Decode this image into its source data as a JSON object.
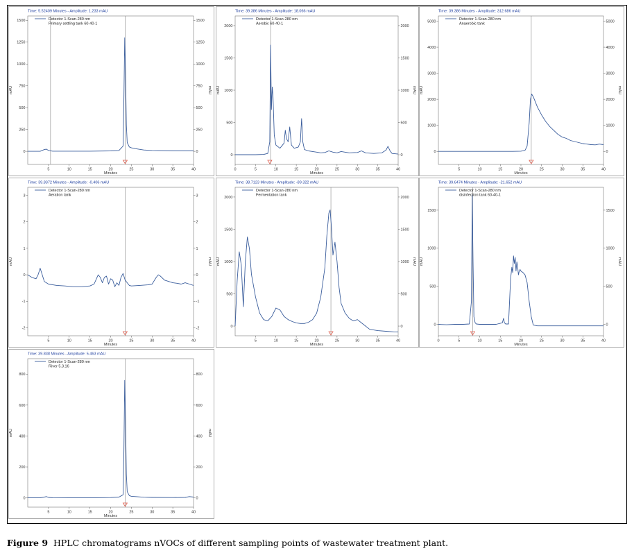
{
  "caption": {
    "label": "Figure 9",
    "text": "HPLC chromatograms nVOCs of different sampling points of wastewater treatment plant."
  },
  "style": {
    "trace_color": "#3a5d9c",
    "status_color": "#1f3f9f",
    "cursor_color": "#888888",
    "marker_color": "#e06050"
  },
  "chart_data": [
    {
      "type": "line",
      "status": "Time:  5.52409 Minutes  -  Amplitude:  1.233 mAU",
      "legend": [
        "Detector 1-Scan-280 nm",
        "Primary settling tank 60-40-1"
      ],
      "xlabel": "Minutes",
      "ylabel": "mAU",
      "xlim": [
        0,
        40
      ],
      "ylim": [
        -150,
        1550
      ],
      "xticks": [
        5,
        10,
        15,
        20,
        25,
        30,
        35,
        40
      ],
      "yticks": [
        0,
        250,
        500,
        750,
        1000,
        1250,
        1500
      ],
      "cursors": [
        5.5,
        23.5
      ],
      "marker_x": 23.5,
      "series": [
        {
          "x": [
            0,
            3,
            4,
            4.5,
            5,
            6,
            10,
            15,
            20,
            22,
            23,
            23.2,
            23.4,
            23.6,
            23.8,
            24,
            24.5,
            25,
            26,
            28,
            30,
            35,
            40
          ],
          "y": [
            0,
            0,
            20,
            25,
            10,
            2,
            2,
            2,
            5,
            10,
            60,
            600,
            1300,
            900,
            300,
            100,
            50,
            40,
            30,
            15,
            10,
            5,
            5
          ]
        }
      ]
    },
    {
      "type": "line",
      "status": "Time:  39.386 Minutes  -  Amplitude:  18.066 mAU",
      "legend": [
        "Detector 1-Scan-280 nm",
        "Aerobic 60-40-1"
      ],
      "xlabel": "Minutes",
      "ylabel": "mAU",
      "xlim": [
        0,
        40
      ],
      "ylim": [
        -150,
        2150
      ],
      "xticks": [
        0,
        5,
        10,
        15,
        20,
        25,
        30,
        35,
        40
      ],
      "yticks": [
        0,
        500,
        1000,
        1500,
        2000
      ],
      "cursors": [
        8.7
      ],
      "marker_x": 8.5,
      "series": [
        {
          "x": [
            0,
            5,
            7,
            8,
            8.5,
            8.7,
            8.9,
            9.1,
            9.3,
            9.6,
            10,
            11,
            12,
            12.3,
            12.6,
            13,
            13.4,
            13.8,
            14.5,
            15.5,
            16,
            16.3,
            16.6,
            17,
            18,
            19,
            20,
            21,
            22,
            23,
            24,
            25,
            26,
            28,
            30,
            31,
            32,
            34,
            36,
            37,
            37.5,
            38,
            38.5,
            40
          ],
          "y": [
            0,
            0,
            5,
            20,
            200,
            1700,
            700,
            1050,
            900,
            300,
            150,
            100,
            180,
            380,
            250,
            200,
            430,
            150,
            100,
            120,
            200,
            560,
            200,
            80,
            60,
            50,
            40,
            30,
            35,
            60,
            40,
            30,
            50,
            30,
            35,
            60,
            30,
            20,
            30,
            70,
            130,
            60,
            20,
            10
          ]
        }
      ]
    },
    {
      "type": "line",
      "status": "Time:  39.386 Minutes  -  Amplitude:  312.686 mAU",
      "legend": [
        "Detector 1-Scan-280 nm",
        "Anaerobic tank"
      ],
      "xlabel": "Minutes",
      "ylabel": "mAU",
      "xlim": [
        0,
        40
      ],
      "ylim": [
        -500,
        5200
      ],
      "xticks": [
        5,
        10,
        15,
        20,
        25,
        30,
        35,
        40
      ],
      "yticks": [
        0,
        1000,
        2000,
        3000,
        4000,
        5000
      ],
      "cursors": [
        22.5
      ],
      "marker_x": 22.5,
      "series": [
        {
          "x": [
            0,
            5,
            10,
            15,
            18,
            20,
            21,
            21.5,
            22,
            22.3,
            22.6,
            23,
            23.5,
            24,
            25,
            26,
            27,
            28,
            29,
            30,
            31,
            32,
            33,
            34,
            35,
            36,
            37,
            38,
            39,
            40
          ],
          "y": [
            0,
            0,
            0,
            0,
            0,
            10,
            40,
            200,
            1100,
            2000,
            2200,
            2100,
            1900,
            1700,
            1400,
            1150,
            950,
            800,
            650,
            550,
            500,
            420,
            380,
            340,
            300,
            280,
            260,
            250,
            280,
            260
          ]
        }
      ]
    },
    {
      "type": "line",
      "status": "Time:  39.8372 Minutes  -  Amplitude:  -0.406 mAU",
      "legend": [
        "Detector 1-Scan-280 nm",
        "Aeration tank"
      ],
      "xlabel": "Minutes",
      "ylabel": "mAU",
      "xlim": [
        0,
        40
      ],
      "ylim": [
        -2.3,
        3.3
      ],
      "xticks": [
        5,
        10,
        15,
        20,
        25,
        30,
        35,
        40
      ],
      "yticks": [
        -2,
        -1,
        0,
        1,
        2,
        3
      ],
      "cursors": [
        23.5
      ],
      "marker_x": 23.5,
      "series": [
        {
          "x": [
            0,
            1,
            2,
            2.5,
            3,
            3.5,
            4,
            5,
            7,
            9,
            11,
            13,
            15,
            16,
            17,
            17.5,
            18,
            18.5,
            19,
            19.5,
            20,
            20.5,
            21,
            21.5,
            22,
            22.5,
            23,
            23.5,
            24,
            24.5,
            25,
            27,
            29,
            30,
            31,
            31.5,
            32,
            33,
            34,
            35,
            36,
            37,
            38,
            39,
            40
          ],
          "y": [
            0,
            -0.1,
            -0.15,
            0,
            0.25,
            0,
            -0.25,
            -0.35,
            -0.4,
            -0.42,
            -0.45,
            -0.45,
            -0.42,
            -0.35,
            0,
            -0.1,
            -0.3,
            -0.1,
            -0.05,
            -0.35,
            -0.15,
            -0.2,
            -0.45,
            -0.3,
            -0.4,
            -0.1,
            0.05,
            -0.2,
            -0.3,
            -0.4,
            -0.42,
            -0.4,
            -0.38,
            -0.35,
            -0.1,
            0,
            -0.05,
            -0.2,
            -0.25,
            -0.3,
            -0.32,
            -0.35,
            -0.3,
            -0.35,
            -0.4
          ]
        }
      ]
    },
    {
      "type": "line",
      "status": "Time:  38.7123 Minutes  -  Amplitude:  -89.322 mAU",
      "legend": [
        "Detector 1-Scan-280 nm",
        "Fermentation tank"
      ],
      "xlabel": "Minutes",
      "ylabel": "mAU",
      "xlim": [
        0,
        40
      ],
      "ylim": [
        -150,
        2150
      ],
      "xticks": [
        5,
        10,
        15,
        20,
        25,
        30,
        35,
        40
      ],
      "yticks": [
        0,
        500,
        1000,
        1500,
        2000
      ],
      "cursors": [
        23.5
      ],
      "marker_x": 23.5,
      "series": [
        {
          "x": [
            0,
            0.5,
            1,
            1.5,
            2,
            2.5,
            3,
            3.5,
            4,
            5,
            6,
            7,
            8,
            9,
            10,
            11,
            12,
            13,
            14,
            15,
            16,
            17,
            18,
            19,
            20,
            21,
            22,
            22.5,
            23,
            23.3,
            23.6,
            24,
            24.5,
            25,
            25.5,
            26,
            27,
            28,
            29,
            30,
            31,
            32,
            33,
            35,
            37,
            39,
            40
          ],
          "y": [
            0,
            700,
            1150,
            950,
            300,
            1000,
            1380,
            1200,
            800,
            450,
            200,
            100,
            80,
            150,
            280,
            250,
            150,
            100,
            70,
            50,
            40,
            40,
            60,
            100,
            200,
            450,
            900,
            1400,
            1750,
            1800,
            1550,
            1100,
            1300,
            1000,
            600,
            350,
            200,
            120,
            80,
            100,
            50,
            0,
            -50,
            -70,
            -80,
            -90,
            -90
          ]
        }
      ]
    },
    {
      "type": "line",
      "status": "Time:  39.6474 Minutes  -  Amplitude:  -21.652 mAU",
      "legend": [
        "Detector 1-Scan-280 nm",
        "disinfection tank 60-40-1"
      ],
      "xlabel": "Minutes",
      "ylabel": "mAU",
      "xlim": [
        0,
        40
      ],
      "ylim": [
        -150,
        1800
      ],
      "xticks": [
        0,
        5,
        10,
        15,
        20,
        25,
        30,
        35,
        40
      ],
      "yticks": [
        0,
        500,
        1000,
        1500
      ],
      "cursors": [
        8.3
      ],
      "marker_x": 8.3,
      "series": [
        {
          "x": [
            0,
            2,
            4,
            6,
            7.5,
            8,
            8.2,
            8.4,
            8.6,
            8.9,
            9.2,
            10,
            12,
            14,
            15.5,
            15.8,
            16,
            16.3,
            17,
            17.5,
            17.8,
            18,
            18.2,
            18.4,
            18.6,
            18.8,
            19,
            19.2,
            19.4,
            19.6,
            19.8,
            20,
            20.5,
            21,
            21.5,
            22,
            22.5,
            23,
            24,
            26,
            28,
            30,
            35,
            40
          ],
          "y": [
            0,
            -5,
            0,
            0,
            5,
            300,
            1700,
            800,
            100,
            20,
            5,
            0,
            0,
            0,
            20,
            80,
            20,
            5,
            5,
            600,
            750,
            680,
            900,
            800,
            880,
            700,
            820,
            760,
            650,
            700,
            720,
            700,
            680,
            650,
            550,
            300,
            100,
            -10,
            -20,
            -20,
            -20,
            -20,
            -20,
            -20
          ]
        }
      ]
    },
    {
      "type": "line",
      "status": "Time:  39.838 Minutes  -  Amplitude:  5.463 mAU",
      "legend": [
        "Detector 1-Scan-280 nm",
        "River 5.3.16"
      ],
      "xlabel": "Minutes",
      "ylabel": "mAU",
      "xlim": [
        0,
        40
      ],
      "ylim": [
        -60,
        900
      ],
      "xticks": [
        5,
        10,
        15,
        20,
        25,
        30,
        35,
        40
      ],
      "yticks": [
        0,
        200,
        400,
        600,
        800
      ],
      "cursors": [
        23.5
      ],
      "marker_x": 23.5,
      "series": [
        {
          "x": [
            0,
            3,
            4,
            4.5,
            5,
            6,
            10,
            15,
            20,
            22,
            23,
            23.2,
            23.4,
            23.6,
            23.8,
            24,
            24.5,
            25,
            26,
            28,
            30,
            35,
            38,
            39,
            40
          ],
          "y": [
            0,
            0,
            5,
            8,
            3,
            1,
            0,
            0,
            2,
            5,
            20,
            300,
            760,
            500,
            150,
            40,
            15,
            10,
            8,
            4,
            3,
            2,
            3,
            8,
            5
          ]
        }
      ]
    }
  ]
}
